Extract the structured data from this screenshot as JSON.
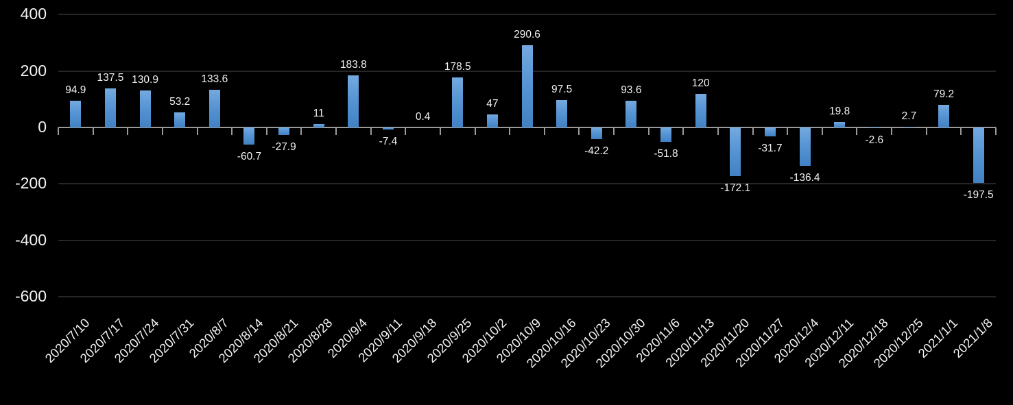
{
  "chart": {
    "background_color": "#000000",
    "bar_color_top": "#74aadf",
    "bar_color_bottom": "#4181c4",
    "gridline_color": "#262626",
    "axis_color": "#9a9a9a",
    "text_color": "#f2f2f2"
  },
  "chart_data": {
    "type": "bar",
    "title": "",
    "xlabel": "",
    "ylabel": "",
    "categories": [
      "2020/7/10",
      "2020/7/17",
      "2020/7/24",
      "2020/7/31",
      "2020/8/7",
      "2020/8/14",
      "2020/8/21",
      "2020/8/28",
      "2020/9/4",
      "2020/9/11",
      "2020/9/18",
      "2020/9/25",
      "2020/10/2",
      "2020/10/9",
      "2020/10/16",
      "2020/10/23",
      "2020/10/30",
      "2020/11/6",
      "2020/11/13",
      "2020/11/20",
      "2020/11/27",
      "2020/12/4",
      "2020/12/11",
      "2020/12/18",
      "2020/12/25",
      "2021/1/1",
      "2021/1/8"
    ],
    "values": [
      94.9,
      137.5,
      130.9,
      53.2,
      133.6,
      -60.7,
      -27.9,
      11,
      183.8,
      -7.4,
      0.4,
      178.5,
      47,
      290.6,
      97.5,
      -42.2,
      93.6,
      -51.8,
      120,
      -172.1,
      -31.7,
      -136.4,
      19.8,
      -2.6,
      2.7,
      79.2,
      -197.5
    ],
    "ylim": [
      -600,
      400
    ],
    "yticks": [
      400,
      200,
      0,
      -200,
      -400,
      -600
    ],
    "grid": true,
    "legend": false,
    "data_labels": true
  }
}
